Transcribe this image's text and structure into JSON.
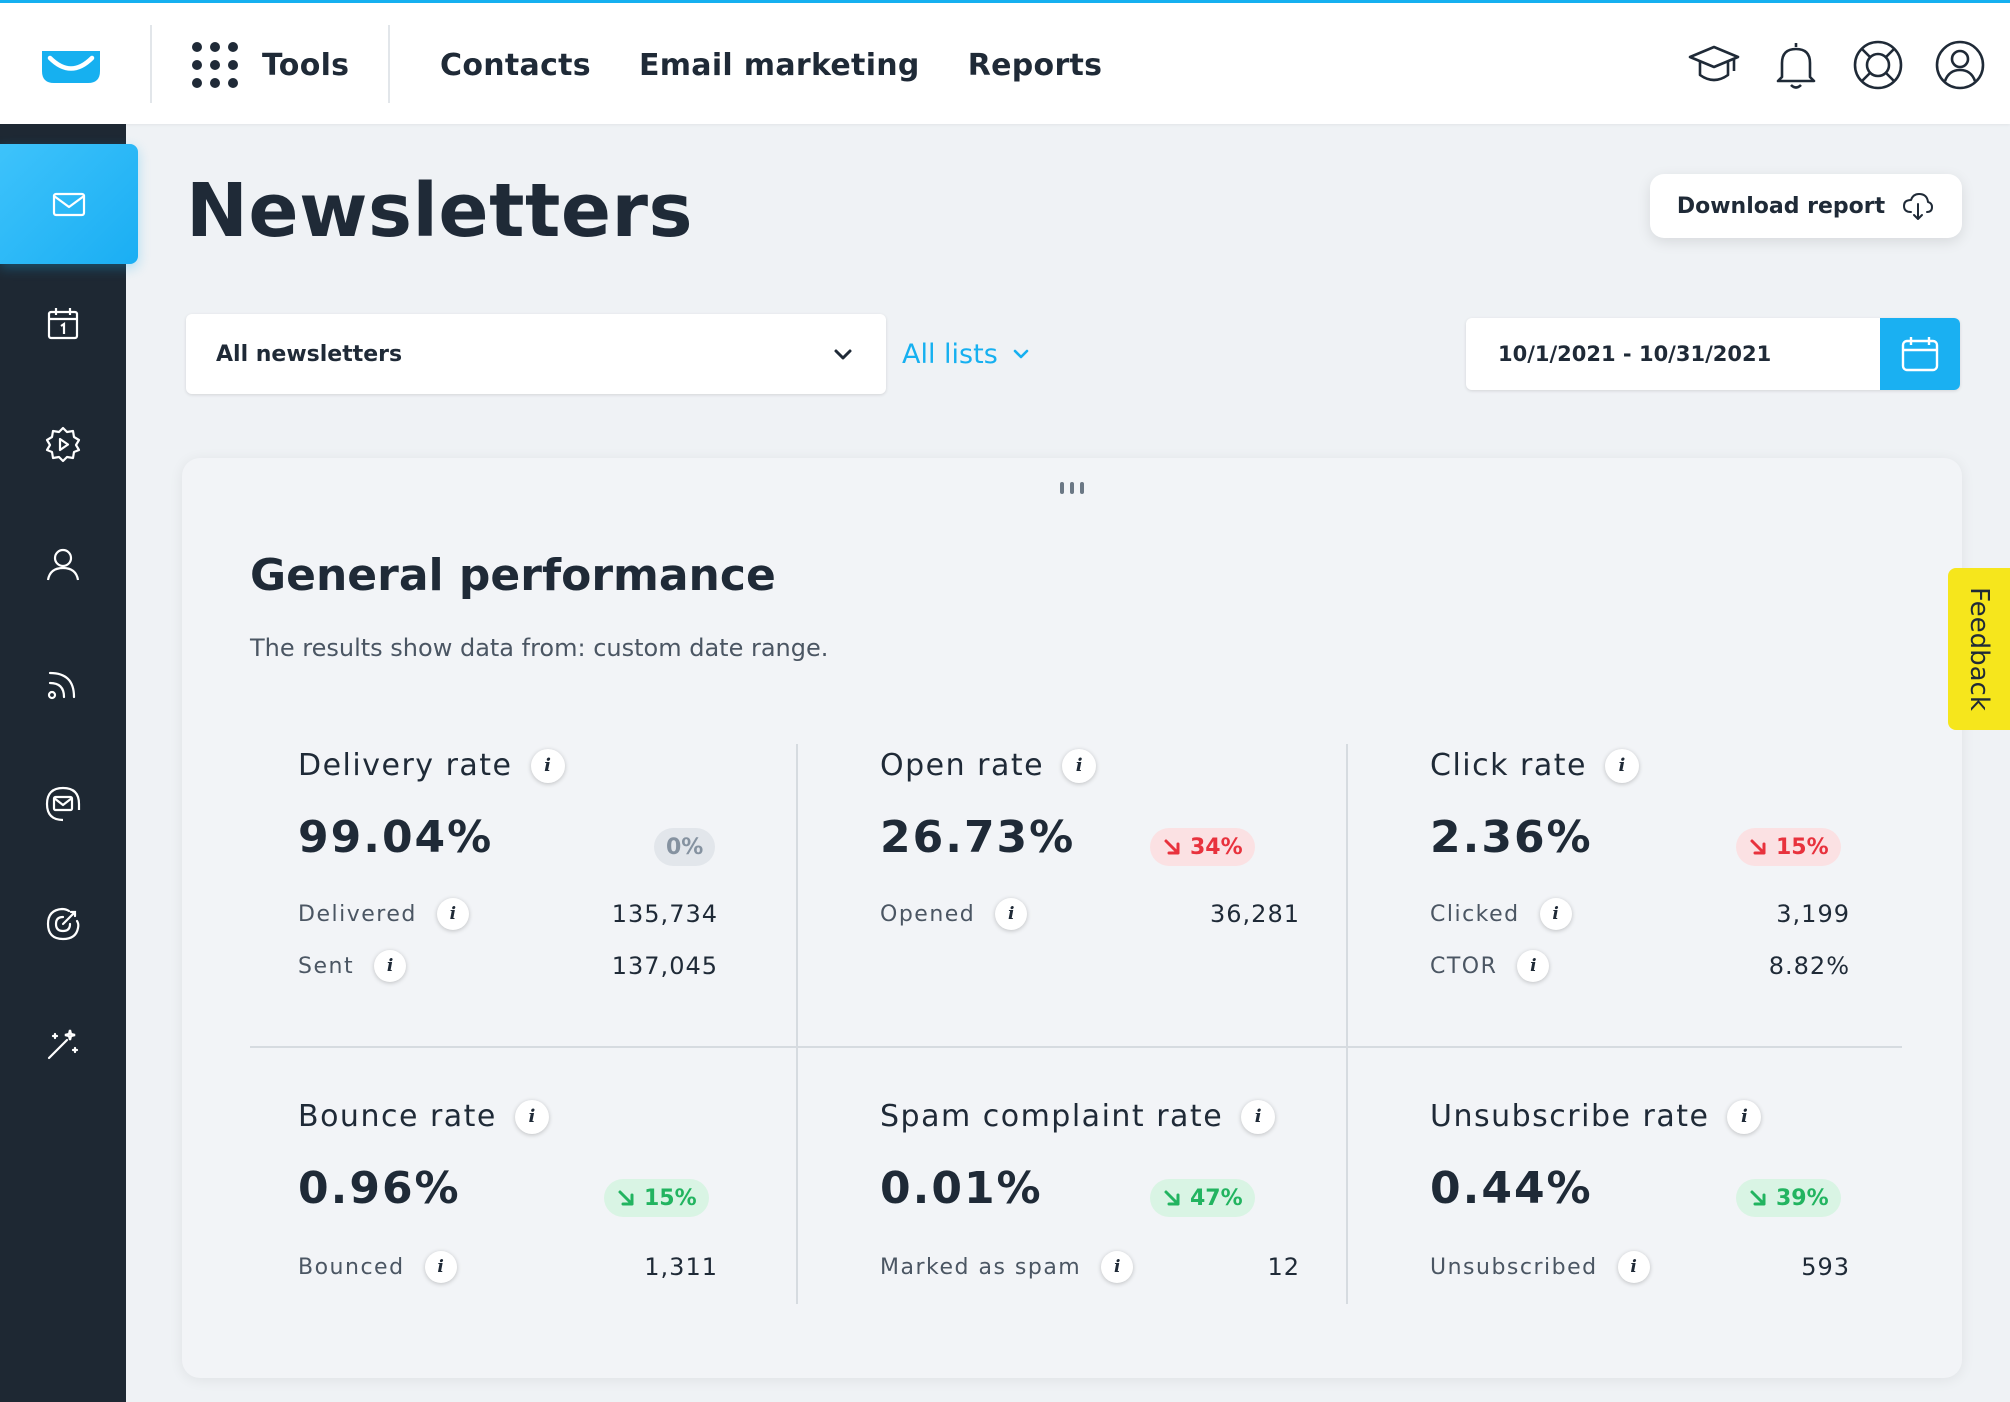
{
  "app": {
    "accent_color": "#16b0f0",
    "sidebar_color": "#1e2833"
  },
  "topbar": {
    "tools_label": "Tools",
    "nav": [
      "Contacts",
      "Email marketing",
      "Reports"
    ],
    "icons": [
      "graduation-cap-icon",
      "bell-icon",
      "help-lifebuoy-icon",
      "user-account-icon"
    ]
  },
  "sidebar": {
    "items": [
      {
        "icon": "envelope-icon",
        "active": true
      },
      {
        "icon": "calendar-icon",
        "active": false
      },
      {
        "icon": "automation-gear-icon",
        "active": false
      },
      {
        "icon": "contact-person-icon",
        "active": false
      },
      {
        "icon": "rss-icon",
        "active": false
      },
      {
        "icon": "email-circle-icon",
        "active": false
      },
      {
        "icon": "target-icon",
        "active": false
      },
      {
        "icon": "magic-wand-icon",
        "active": false
      }
    ]
  },
  "page": {
    "title": "Newsletters",
    "download_label": "Download report",
    "newsletter_select": "All newsletters",
    "lists_filter": "All lists",
    "date_range": "10/1/2021 - 10/31/2021"
  },
  "card": {
    "title": "General performance",
    "subtitle": "The results show data from: custom date range."
  },
  "metrics": {
    "delivery": {
      "title": "Delivery rate",
      "value": "99.04%",
      "change": "0%",
      "trend": "neutral",
      "rows": [
        {
          "label": "Delivered",
          "value": "135,734"
        },
        {
          "label": "Sent",
          "value": "137,045"
        }
      ]
    },
    "open": {
      "title": "Open rate",
      "value": "26.73%",
      "change": "34%",
      "trend": "down-bad",
      "rows": [
        {
          "label": "Opened",
          "value": "36,281"
        }
      ]
    },
    "click": {
      "title": "Click rate",
      "value": "2.36%",
      "change": "15%",
      "trend": "down-bad",
      "rows": [
        {
          "label": "Clicked",
          "value": "3,199"
        },
        {
          "label": "CTOR",
          "value": "8.82%"
        }
      ]
    },
    "bounce": {
      "title": "Bounce rate",
      "value": "0.96%",
      "change": "15%",
      "trend": "down-good",
      "rows": [
        {
          "label": "Bounced",
          "value": "1,311"
        }
      ]
    },
    "spam": {
      "title": "Spam complaint rate",
      "value": "0.01%",
      "change": "47%",
      "trend": "down-good",
      "rows": [
        {
          "label": "Marked as spam",
          "value": "12"
        }
      ]
    },
    "unsubscribe": {
      "title": "Unsubscribe rate",
      "value": "0.44%",
      "change": "39%",
      "trend": "down-good",
      "rows": [
        {
          "label": "Unsubscribed",
          "value": "593"
        }
      ]
    }
  },
  "feedback_label": "Feedback"
}
